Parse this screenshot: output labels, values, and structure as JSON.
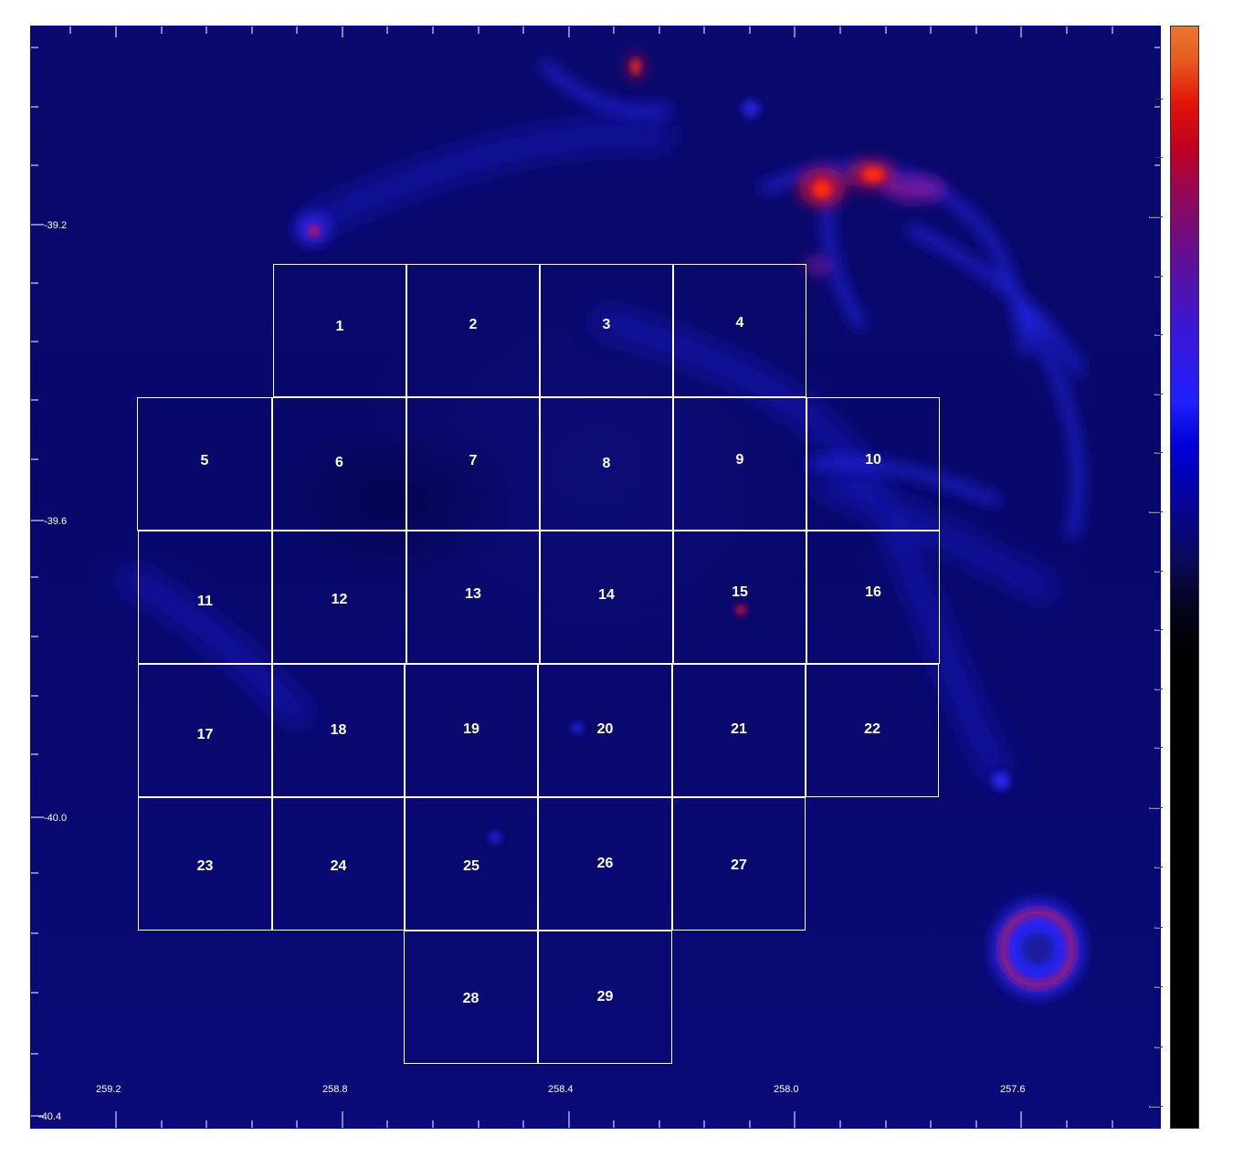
{
  "image": {
    "description_type": "sky map with numbered observation fields",
    "colormap": "black-blue-purple-red-orange",
    "colors": {
      "background": "#0a0a6e",
      "grid_lines": "#ffffff",
      "labels": "#ffffff",
      "hot_emission": "#e0140a"
    }
  },
  "axes": {
    "ra_labels": [
      "259.2",
      "258.8",
      "258.4",
      "258.0",
      "257.6"
    ],
    "dec_labels": [
      "-39.2",
      "-39.6",
      "-40.0",
      "-40.4"
    ]
  },
  "fields": [
    "1",
    "2",
    "3",
    "4",
    "5",
    "6",
    "7",
    "8",
    "9",
    "10",
    "11",
    "12",
    "13",
    "14",
    "15",
    "16",
    "17",
    "18",
    "19",
    "20",
    "21",
    "22",
    "23",
    "24",
    "25",
    "26",
    "27",
    "28",
    "29"
  ]
}
